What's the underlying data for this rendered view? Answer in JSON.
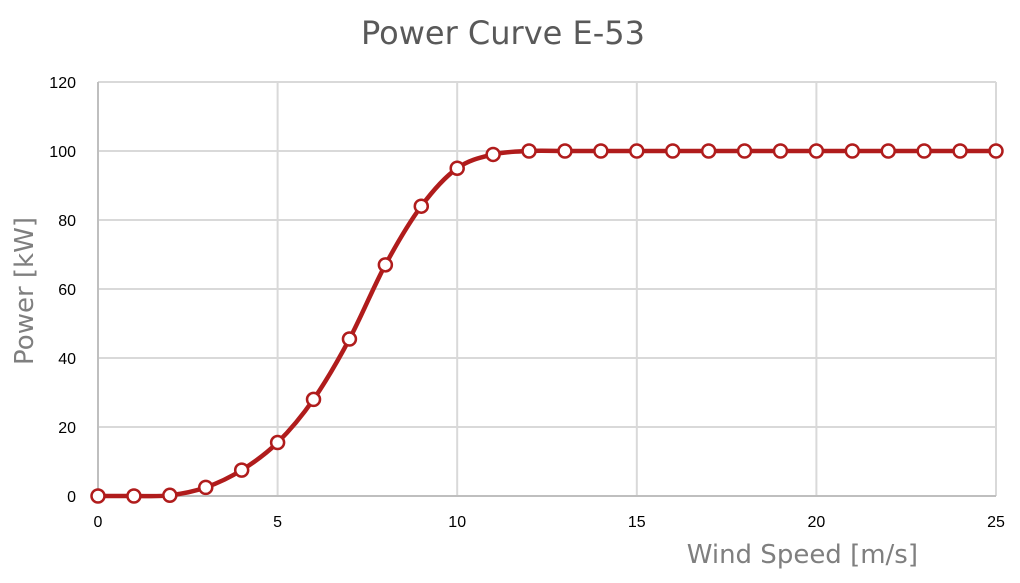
{
  "chart_data": {
    "type": "line",
    "title": "Power Curve E-53",
    "xlabel": "Wind Speed  [m/s]",
    "ylabel": "Power  [kW]",
    "xlim": [
      0,
      25
    ],
    "ylim": [
      0,
      120
    ],
    "x_ticks": [
      0,
      5,
      10,
      15,
      20,
      25
    ],
    "y_ticks": [
      0,
      20,
      40,
      60,
      80,
      100,
      120
    ],
    "x_tick_labels": [
      "0",
      "5",
      "10",
      "15",
      "20",
      "25"
    ],
    "y_tick_labels": [
      "0",
      "20",
      "40",
      "60",
      "80",
      "100",
      "120"
    ],
    "grid": true,
    "legend": "none",
    "series_color": "#b01c1c",
    "marker_fill": "#ffffff",
    "series": [
      {
        "x": [
          0,
          1,
          2,
          3,
          4,
          5,
          6,
          7,
          8,
          9,
          10,
          11,
          12,
          13,
          14,
          15,
          16,
          17,
          18,
          19,
          20,
          21,
          22,
          23,
          24,
          25
        ],
        "values": [
          0,
          0,
          0.2,
          2.5,
          7.5,
          15.5,
          28,
          45.5,
          67,
          84,
          95,
          99,
          100,
          100,
          100,
          100,
          100,
          100,
          100,
          100,
          100,
          100,
          100,
          100,
          100,
          100
        ]
      }
    ]
  }
}
